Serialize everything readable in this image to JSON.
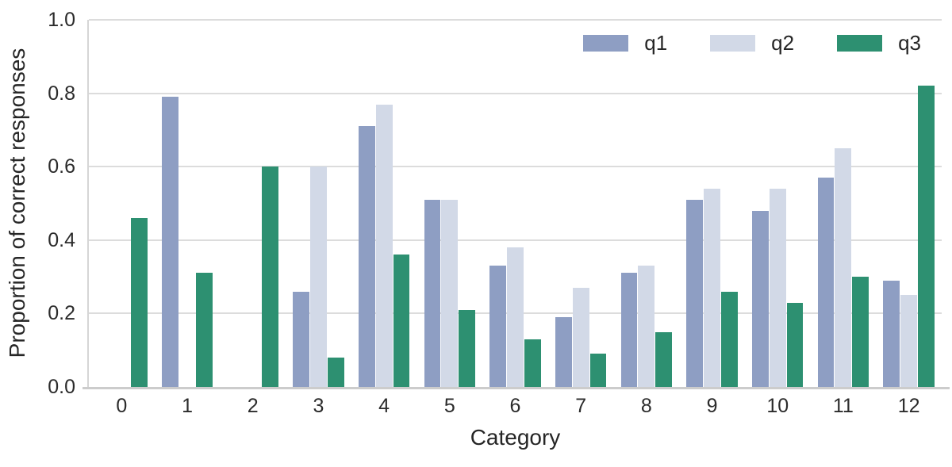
{
  "chart_data": {
    "type": "bar",
    "title": "",
    "xlabel": "Category",
    "ylabel": "Proportion of correct responses",
    "categories": [
      "0",
      "1",
      "2",
      "3",
      "4",
      "5",
      "6",
      "7",
      "8",
      "9",
      "10",
      "11",
      "12"
    ],
    "series": [
      {
        "name": "q1",
        "color": "#8e9ec3",
        "values": [
          0,
          0.79,
          0,
          0.26,
          0.71,
          0.51,
          0.33,
          0.19,
          0.31,
          0.51,
          0.48,
          0.57,
          0.29
        ]
      },
      {
        "name": "q2",
        "color": "#d2d9e7",
        "values": [
          0,
          0,
          0,
          0.6,
          0.77,
          0.51,
          0.38,
          0.27,
          0.33,
          0.54,
          0.54,
          0.65,
          0.25
        ]
      },
      {
        "name": "q3",
        "color": "#2d9071",
        "values": [
          0.46,
          0.31,
          0.6,
          0.08,
          0.36,
          0.21,
          0.13,
          0.09,
          0.15,
          0.26,
          0.23,
          0.3,
          0.82
        ]
      }
    ],
    "ylim": [
      0,
      1
    ],
    "yticks": [
      "0.0",
      "0.2",
      "0.4",
      "0.6",
      "0.8",
      "1.0"
    ],
    "grid": true,
    "legend_position": "upper-right",
    "colors": {
      "grid": "#dcdcdc",
      "axis": "#cccccc",
      "text": "#262626",
      "background": "#ffffff"
    }
  }
}
